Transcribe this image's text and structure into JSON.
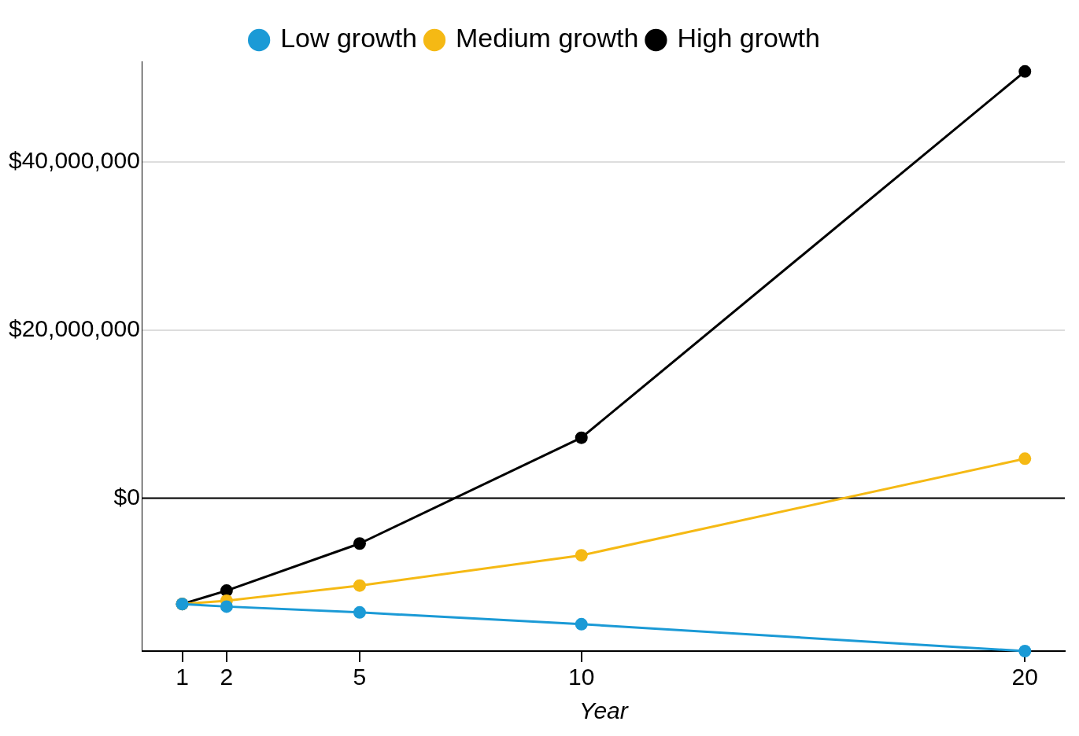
{
  "chart_data": {
    "type": "line",
    "xlabel": "Year",
    "x": [
      1,
      2,
      5,
      10,
      20
    ],
    "series": [
      {
        "name": "Low growth",
        "color": "#1b9ad6",
        "values": [
          -12600000,
          -12900000,
          -13600000,
          -15000000,
          -18200000
        ]
      },
      {
        "name": "Medium growth",
        "color": "#f5b914",
        "values": [
          -12600000,
          -12200000,
          -10400000,
          -6800000,
          4700000
        ]
      },
      {
        "name": "High growth",
        "color": "#000000",
        "values": [
          -12600000,
          -11000000,
          -5400000,
          7200000,
          50800000
        ]
      }
    ],
    "xlim": [
      0.1,
      20.9
    ],
    "xticks": [
      1,
      2,
      5,
      10,
      20
    ],
    "ylim": [
      -18200000,
      52000000
    ],
    "yticks": [
      {
        "value": 0,
        "label": "$0"
      },
      {
        "value": 20000000,
        "label": "$20,000,000"
      },
      {
        "value": 40000000,
        "label": "$40,000,000"
      }
    ],
    "ref_lines": [
      {
        "axis": "y",
        "value": 0,
        "color": "#000000"
      }
    ],
    "grid": "y",
    "legend": "top",
    "marker": "circle",
    "line_style": "solid"
  }
}
